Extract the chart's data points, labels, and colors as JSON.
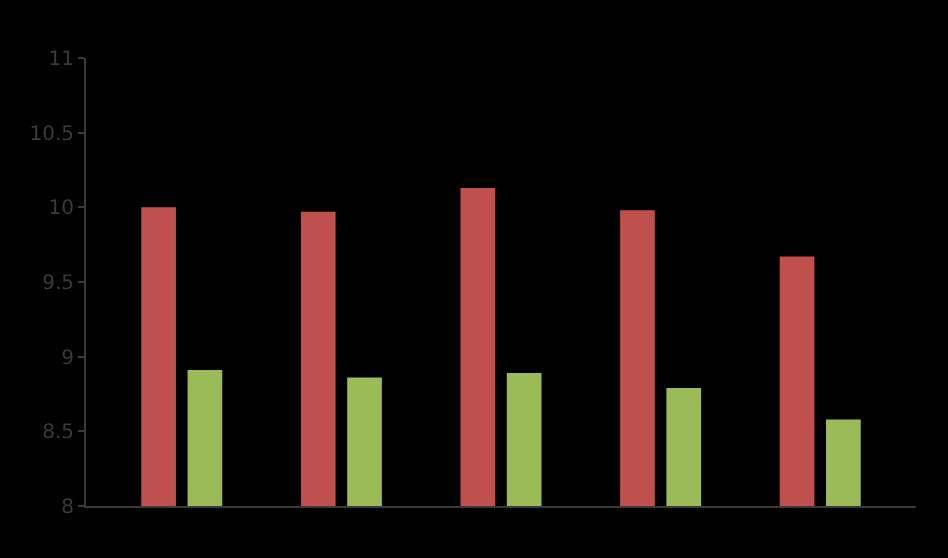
{
  "chart_data": {
    "type": "bar",
    "categories": [
      null,
      null,
      null,
      null,
      null
    ],
    "series": [
      {
        "color": "#c0504d",
        "values": [
          10.0,
          9.97,
          10.13,
          9.98,
          9.67
        ]
      },
      {
        "color": "#9bbb59",
        "values": [
          8.91,
          8.86,
          8.89,
          8.79,
          8.58
        ]
      }
    ],
    "ylim": [
      8,
      11
    ],
    "yticks": [
      8,
      8.5,
      9,
      9.5,
      10,
      10.5,
      11
    ],
    "grid": false
  }
}
